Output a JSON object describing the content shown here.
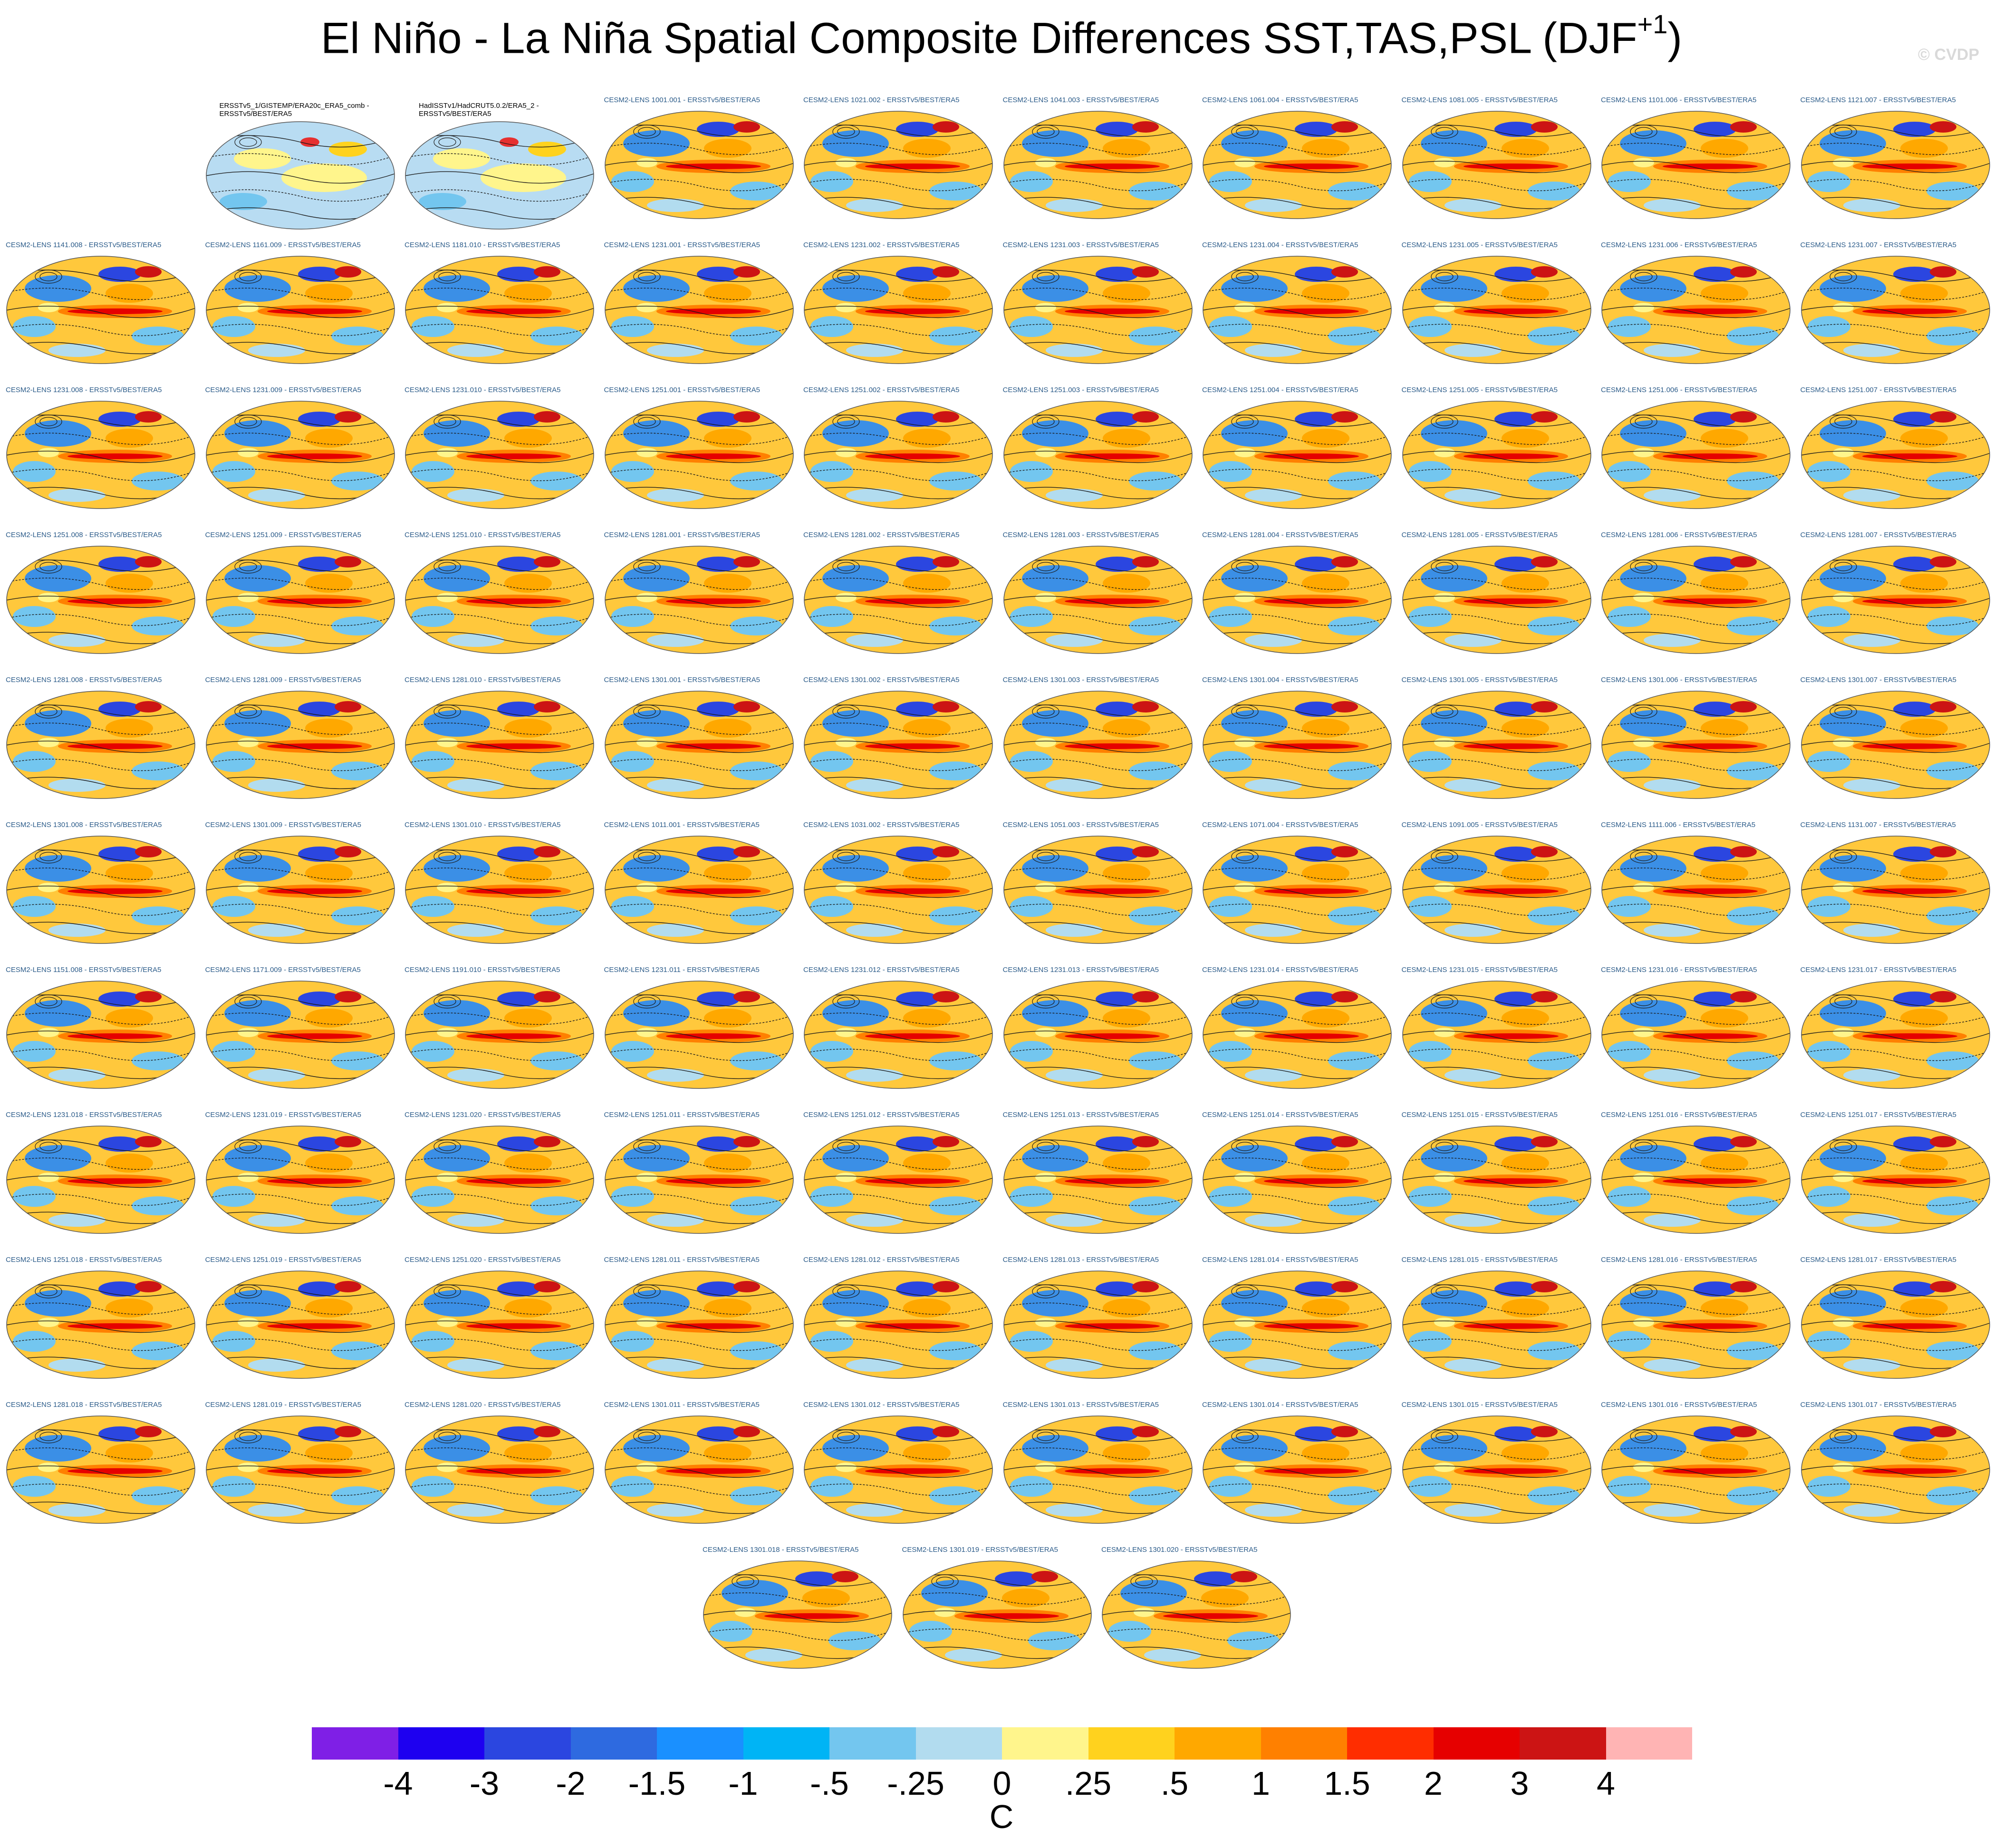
{
  "title_main": "El Niño - La Niña Spatial Composite Differences SST,TAS,PSL (DJF",
  "title_sup": "+1",
  "title_close": ")",
  "copyright": "© CVDP",
  "panels": [
    "ERSSTv5_1/GISTEMP/ERA20c_ERA5_comb - ERSSTv5/BEST/ERA5",
    "HadISSTv1/HadCRUT5.0.2/ERA5_2 - ERSSTv5/BEST/ERA5",
    "CESM2-LENS 1001.001 - ERSSTv5/BEST/ERA5",
    "CESM2-LENS 1021.002 - ERSSTv5/BEST/ERA5",
    "CESM2-LENS 1041.003 - ERSSTv5/BEST/ERA5",
    "CESM2-LENS 1061.004 - ERSSTv5/BEST/ERA5",
    "CESM2-LENS 1081.005 - ERSSTv5/BEST/ERA5",
    "CESM2-LENS 1101.006 - ERSSTv5/BEST/ERA5",
    "CESM2-LENS 1121.007 - ERSSTv5/BEST/ERA5",
    "CESM2-LENS 1141.008 - ERSSTv5/BEST/ERA5",
    "CESM2-LENS 1161.009 - ERSSTv5/BEST/ERA5",
    "CESM2-LENS 1181.010 - ERSSTv5/BEST/ERA5",
    "CESM2-LENS 1231.001 - ERSSTv5/BEST/ERA5",
    "CESM2-LENS 1231.002 - ERSSTv5/BEST/ERA5",
    "CESM2-LENS 1231.003 - ERSSTv5/BEST/ERA5",
    "CESM2-LENS 1231.004 - ERSSTv5/BEST/ERA5",
    "CESM2-LENS 1231.005 - ERSSTv5/BEST/ERA5",
    "CESM2-LENS 1231.006 - ERSSTv5/BEST/ERA5",
    "CESM2-LENS 1231.007 - ERSSTv5/BEST/ERA5",
    "CESM2-LENS 1231.008 - ERSSTv5/BEST/ERA5",
    "CESM2-LENS 1231.009 - ERSSTv5/BEST/ERA5",
    "CESM2-LENS 1231.010 - ERSSTv5/BEST/ERA5",
    "CESM2-LENS 1251.001 - ERSSTv5/BEST/ERA5",
    "CESM2-LENS 1251.002 - ERSSTv5/BEST/ERA5",
    "CESM2-LENS 1251.003 - ERSSTv5/BEST/ERA5",
    "CESM2-LENS 1251.004 - ERSSTv5/BEST/ERA5",
    "CESM2-LENS 1251.005 - ERSSTv5/BEST/ERA5",
    "CESM2-LENS 1251.006 - ERSSTv5/BEST/ERA5",
    "CESM2-LENS 1251.007 - ERSSTv5/BEST/ERA5",
    "CESM2-LENS 1251.008 - ERSSTv5/BEST/ERA5",
    "CESM2-LENS 1251.009 - ERSSTv5/BEST/ERA5",
    "CESM2-LENS 1251.010 - ERSSTv5/BEST/ERA5",
    "CESM2-LENS 1281.001 - ERSSTv5/BEST/ERA5",
    "CESM2-LENS 1281.002 - ERSSTv5/BEST/ERA5",
    "CESM2-LENS 1281.003 - ERSSTv5/BEST/ERA5",
    "CESM2-LENS 1281.004 - ERSSTv5/BEST/ERA5",
    "CESM2-LENS 1281.005 - ERSSTv5/BEST/ERA5",
    "CESM2-LENS 1281.006 - ERSSTv5/BEST/ERA5",
    "CESM2-LENS 1281.007 - ERSSTv5/BEST/ERA5",
    "CESM2-LENS 1281.008 - ERSSTv5/BEST/ERA5",
    "CESM2-LENS 1281.009 - ERSSTv5/BEST/ERA5",
    "CESM2-LENS 1281.010 - ERSSTv5/BEST/ERA5",
    "CESM2-LENS 1301.001 - ERSSTv5/BEST/ERA5",
    "CESM2-LENS 1301.002 - ERSSTv5/BEST/ERA5",
    "CESM2-LENS 1301.003 - ERSSTv5/BEST/ERA5",
    "CESM2-LENS 1301.004 - ERSSTv5/BEST/ERA5",
    "CESM2-LENS 1301.005 - ERSSTv5/BEST/ERA5",
    "CESM2-LENS 1301.006 - ERSSTv5/BEST/ERA5",
    "CESM2-LENS 1301.007 - ERSSTv5/BEST/ERA5",
    "CESM2-LENS 1301.008 - ERSSTv5/BEST/ERA5",
    "CESM2-LENS 1301.009 - ERSSTv5/BEST/ERA5",
    "CESM2-LENS 1301.010 - ERSSTv5/BEST/ERA5",
    "CESM2-LENS 1011.001 - ERSSTv5/BEST/ERA5",
    "CESM2-LENS 1031.002 - ERSSTv5/BEST/ERA5",
    "CESM2-LENS 1051.003 - ERSSTv5/BEST/ERA5",
    "CESM2-LENS 1071.004 - ERSSTv5/BEST/ERA5",
    "CESM2-LENS 1091.005 - ERSSTv5/BEST/ERA5",
    "CESM2-LENS 1111.006 - ERSSTv5/BEST/ERA5",
    "CESM2-LENS 1131.007 - ERSSTv5/BEST/ERA5",
    "CESM2-LENS 1151.008 - ERSSTv5/BEST/ERA5",
    "CESM2-LENS 1171.009 - ERSSTv5/BEST/ERA5",
    "CESM2-LENS 1191.010 - ERSSTv5/BEST/ERA5",
    "CESM2-LENS 1231.011 - ERSSTv5/BEST/ERA5",
    "CESM2-LENS 1231.012 - ERSSTv5/BEST/ERA5",
    "CESM2-LENS 1231.013 - ERSSTv5/BEST/ERA5",
    "CESM2-LENS 1231.014 - ERSSTv5/BEST/ERA5",
    "CESM2-LENS 1231.015 - ERSSTv5/BEST/ERA5",
    "CESM2-LENS 1231.016 - ERSSTv5/BEST/ERA5",
    "CESM2-LENS 1231.017 - ERSSTv5/BEST/ERA5",
    "CESM2-LENS 1231.018 - ERSSTv5/BEST/ERA5",
    "CESM2-LENS 1231.019 - ERSSTv5/BEST/ERA5",
    "CESM2-LENS 1231.020 - ERSSTv5/BEST/ERA5",
    "CESM2-LENS 1251.011 - ERSSTv5/BEST/ERA5",
    "CESM2-LENS 1251.012 - ERSSTv5/BEST/ERA5",
    "CESM2-LENS 1251.013 - ERSSTv5/BEST/ERA5",
    "CESM2-LENS 1251.014 - ERSSTv5/BEST/ERA5",
    "CESM2-LENS 1251.015 - ERSSTv5/BEST/ERA5",
    "CESM2-LENS 1251.016 - ERSSTv5/BEST/ERA5",
    "CESM2-LENS 1251.017 - ERSSTv5/BEST/ERA5",
    "CESM2-LENS 1251.018 - ERSSTv5/BEST/ERA5",
    "CESM2-LENS 1251.019 - ERSSTv5/BEST/ERA5",
    "CESM2-LENS 1251.020 - ERSSTv5/BEST/ERA5",
    "CESM2-LENS 1281.011 - ERSSTv5/BEST/ERA5",
    "CESM2-LENS 1281.012 - ERSSTv5/BEST/ERA5",
    "CESM2-LENS 1281.013 - ERSSTv5/BEST/ERA5",
    "CESM2-LENS 1281.014 - ERSSTv5/BEST/ERA5",
    "CESM2-LENS 1281.015 - ERSSTv5/BEST/ERA5",
    "CESM2-LENS 1281.016 - ERSSTv5/BEST/ERA5",
    "CESM2-LENS 1281.017 - ERSSTv5/BEST/ERA5",
    "CESM2-LENS 1281.018 - ERSSTv5/BEST/ERA5",
    "CESM2-LENS 1281.019 - ERSSTv5/BEST/ERA5",
    "CESM2-LENS 1281.020 - ERSSTv5/BEST/ERA5",
    "CESM2-LENS 1301.011 - ERSSTv5/BEST/ERA5",
    "CESM2-LENS 1301.012 - ERSSTv5/BEST/ERA5",
    "CESM2-LENS 1301.013 - ERSSTv5/BEST/ERA5",
    "CESM2-LENS 1301.014 - ERSSTv5/BEST/ERA5",
    "CESM2-LENS 1301.015 - ERSSTv5/BEST/ERA5",
    "CESM2-LENS 1301.016 - ERSSTv5/BEST/ERA5",
    "CESM2-LENS 1301.017 - ERSSTv5/BEST/ERA5",
    "CESM2-LENS 1301.018 - ERSSTv5/BEST/ERA5",
    "CESM2-LENS 1301.019 - ERSSTv5/BEST/ERA5",
    "CESM2-LENS 1301.020 - ERSSTv5/BEST/ERA5"
  ],
  "colorbar": {
    "colors": [
      "#7f1fe6",
      "#1e00f0",
      "#2b46e0",
      "#2e6ae0",
      "#1a90ff",
      "#00b4f5",
      "#73c6ef",
      "#b2dcef",
      "#fff58c",
      "#ffd21e",
      "#ffa800",
      "#ff8000",
      "#ff2d00",
      "#e60000",
      "#cc1414",
      "#ffb4b4"
    ],
    "tick_labels": [
      "-4",
      "-3",
      "-2",
      "-1.5",
      "-1",
      "-.5",
      "-.25",
      "0",
      ".25",
      ".5",
      "1",
      "1.5",
      "2",
      "3",
      "4"
    ],
    "units": "C"
  }
}
